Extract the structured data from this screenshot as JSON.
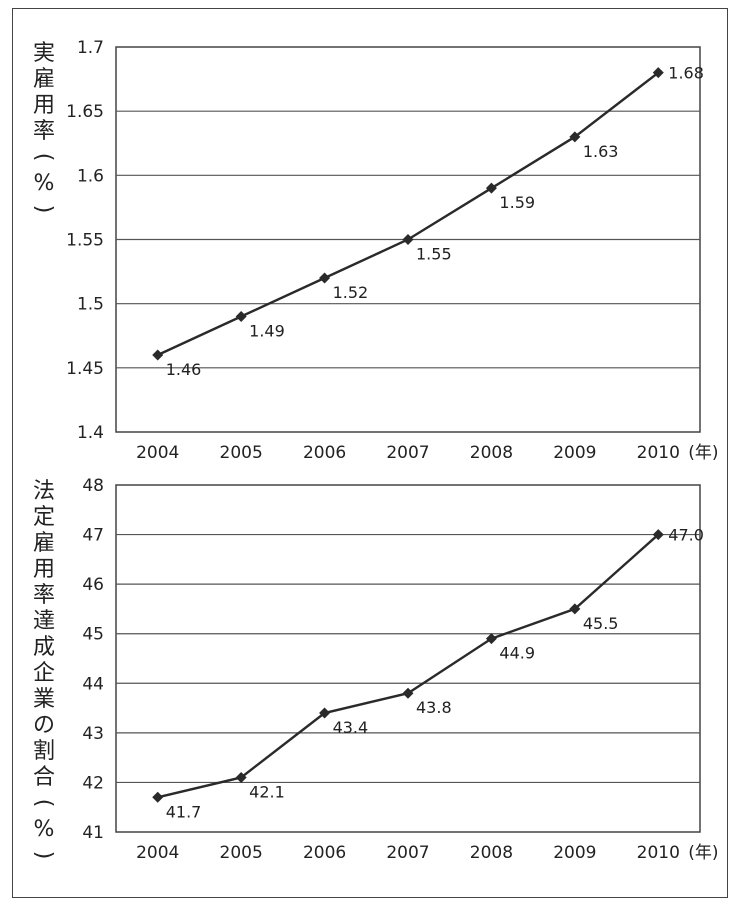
{
  "chart_data": [
    {
      "type": "line",
      "ylabel": "実雇用率（%）",
      "x": [
        "2004",
        "2005",
        "2006",
        "2007",
        "2008",
        "2009",
        "2010"
      ],
      "x_unit": "(年)",
      "y_ticks": [
        "1.7",
        "1.65",
        "1.6",
        "1.55",
        "1.5",
        "1.45",
        "1.4"
      ],
      "ylim": [
        1.4,
        1.7
      ],
      "series": [
        {
          "values": [
            1.46,
            1.49,
            1.52,
            1.55,
            1.59,
            1.63,
            1.68
          ],
          "labels": [
            "1.46",
            "1.49",
            "1.52",
            "1.55",
            "1.59",
            "1.63",
            "1.68"
          ]
        }
      ],
      "grid": true
    },
    {
      "type": "line",
      "ylabel": "法定雇用率達成企業の割合（%）",
      "x": [
        "2004",
        "2005",
        "2006",
        "2007",
        "2008",
        "2009",
        "2010"
      ],
      "x_unit": "(年)",
      "y_ticks": [
        "48",
        "47",
        "46",
        "45",
        "44",
        "43",
        "42",
        "41"
      ],
      "ylim": [
        41,
        48
      ],
      "series": [
        {
          "values": [
            41.7,
            42.1,
            43.4,
            43.8,
            44.9,
            45.5,
            47.0
          ],
          "labels": [
            "41.7",
            "42.1",
            "43.4",
            "43.8",
            "44.9",
            "45.5",
            "47.0"
          ]
        }
      ],
      "grid": true
    }
  ],
  "colors": {
    "line": "#2a2a2a",
    "grid": "#555555",
    "frame": "#444444"
  }
}
